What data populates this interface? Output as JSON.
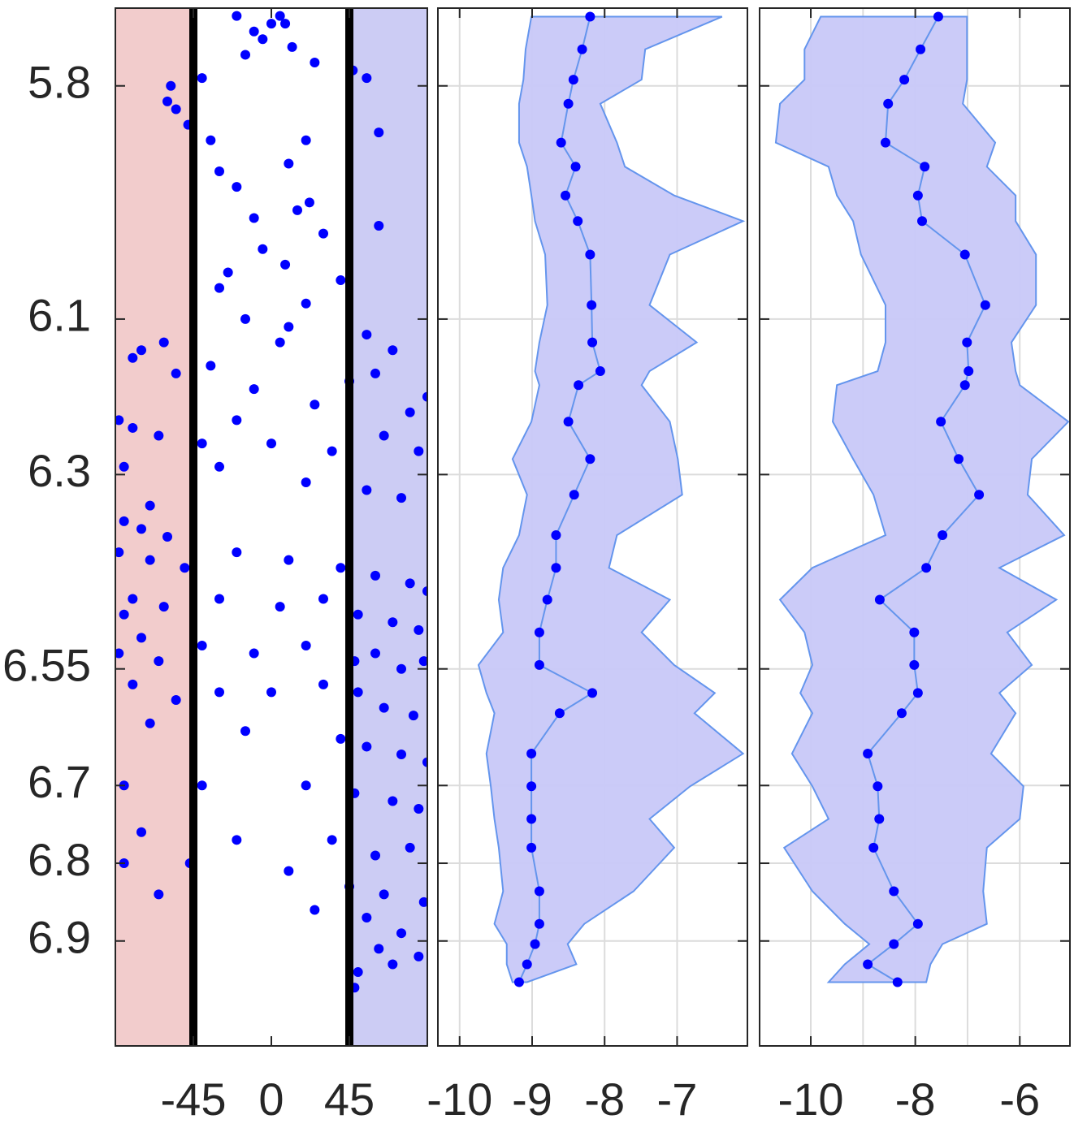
{
  "chart_data": [
    {
      "type": "scatter",
      "color": "#0000ff",
      "xlim": [
        -90,
        90
      ],
      "xticks": [
        -45,
        0,
        45
      ],
      "ylim": [
        5.7,
        7.035
      ],
      "y_reversed": true,
      "yticks": [
        5.8,
        6.1,
        6.3,
        6.55,
        6.7,
        6.8,
        6.9
      ],
      "ytick_labels": true,
      "grid": false,
      "shaded_spans": [
        {
          "from": -90,
          "to": -45,
          "color": "#f2cccc"
        },
        {
          "from": 45,
          "to": 90,
          "color": "#ccccf4"
        }
      ],
      "vlines": [
        -45,
        45
      ],
      "vline_color": "#000000",
      "x": [
        5,
        8,
        -20,
        -10,
        12,
        -15,
        25,
        -5,
        0,
        -58,
        -55,
        -48,
        -60,
        -40,
        -35,
        47,
        55,
        62,
        20,
        10,
        -30,
        -20,
        15,
        22,
        -10,
        30,
        62,
        -5,
        8,
        -25,
        40,
        -30,
        20,
        -15,
        5,
        10,
        -62,
        -75,
        -55,
        -80,
        -35,
        55,
        70,
        60,
        45,
        -10,
        25,
        -20,
        80,
        90,
        -88,
        -80,
        -65,
        -40,
        0,
        35,
        65,
        85,
        -85,
        -30,
        20,
        55,
        75,
        -70,
        -85,
        -75,
        -60,
        -88,
        -70,
        -50,
        -20,
        10,
        40,
        60,
        80,
        90,
        -80,
        -85,
        -62,
        -30,
        5,
        30,
        50,
        70,
        85,
        -75,
        -88,
        -65,
        -40,
        -10,
        20,
        48,
        60,
        75,
        88,
        -80,
        -55,
        -30,
        0,
        30,
        50,
        65,
        82,
        -70,
        -15,
        40,
        55,
        75,
        90,
        -85,
        -40,
        20,
        48,
        70,
        85,
        -75,
        -20,
        35,
        60,
        80,
        -85,
        -47,
        10,
        45,
        65,
        88,
        -65,
        25,
        55,
        75,
        62,
        85,
        50,
        70,
        48
      ],
      "y": [
        5.71,
        5.72,
        5.71,
        5.73,
        5.75,
        5.76,
        5.77,
        5.74,
        5.72,
        5.8,
        5.83,
        5.85,
        5.82,
        5.79,
        5.87,
        5.78,
        5.79,
        5.86,
        5.87,
        5.9,
        5.91,
        5.93,
        5.96,
        5.95,
        5.97,
        5.99,
        5.98,
        6.01,
        6.03,
        6.04,
        6.05,
        6.06,
        6.08,
        6.1,
        6.13,
        6.11,
        6.13,
        6.14,
        6.17,
        6.15,
        6.16,
        6.12,
        6.14,
        6.17,
        6.18,
        6.19,
        6.21,
        6.23,
        6.22,
        6.2,
        6.23,
        6.24,
        6.25,
        6.26,
        6.26,
        6.27,
        6.25,
        6.27,
        6.29,
        6.29,
        6.31,
        6.32,
        6.33,
        6.34,
        6.36,
        6.37,
        6.38,
        6.4,
        6.41,
        6.42,
        6.4,
        6.41,
        6.42,
        6.43,
        6.44,
        6.45,
        6.46,
        6.48,
        6.47,
        6.46,
        6.47,
        6.46,
        6.48,
        6.49,
        6.5,
        6.51,
        6.53,
        6.54,
        6.52,
        6.53,
        6.52,
        6.54,
        6.53,
        6.55,
        6.54,
        6.57,
        6.59,
        6.58,
        6.58,
        6.57,
        6.58,
        6.6,
        6.61,
        6.62,
        6.63,
        6.64,
        6.65,
        6.66,
        6.67,
        6.7,
        6.7,
        6.7,
        6.71,
        6.72,
        6.73,
        6.76,
        6.77,
        6.77,
        6.79,
        6.78,
        6.8,
        6.8,
        6.81,
        6.83,
        6.84,
        6.85,
        6.84,
        6.86,
        6.87,
        6.89,
        6.91,
        6.92,
        6.94,
        6.93,
        6.96
      ]
    },
    {
      "type": "profile",
      "color": "#0000ff",
      "band_color": "#c8c8f8",
      "edge_color": "#6495ed",
      "xlim": [
        -10.3,
        -6.03
      ],
      "xticks": [
        -10,
        -9,
        -8,
        -7
      ],
      "ylim": [
        5.7,
        7.035
      ],
      "y_reversed": true,
      "yticks": [
        5.8,
        6.1,
        6.3,
        6.55,
        6.7,
        6.8,
        6.9
      ],
      "ytick_labels": false,
      "grid": true,
      "y": [
        5.711,
        5.753,
        5.792,
        5.823,
        5.873,
        5.904,
        5.941,
        5.974,
        6.017,
        6.082,
        6.13,
        6.167,
        6.185,
        6.232,
        6.28,
        6.326,
        6.378,
        6.42,
        6.461,
        6.503,
        6.545,
        6.581,
        6.607,
        6.659,
        6.701,
        6.743,
        6.78,
        6.836,
        6.878,
        6.904,
        6.93,
        6.953
      ],
      "values": [
        -8.2,
        -8.31,
        -8.43,
        -8.5,
        -8.6,
        -8.4,
        -8.54,
        -8.37,
        -8.2,
        -8.18,
        -8.17,
        -8.06,
        -8.36,
        -8.5,
        -8.2,
        -8.42,
        -8.67,
        -8.67,
        -8.79,
        -8.9,
        -8.9,
        -8.17,
        -8.62,
        -9.01,
        -9.01,
        -9.01,
        -9.01,
        -8.9,
        -8.9,
        -8.96,
        -9.07,
        -9.18
      ],
      "band_low": [
        -9.01,
        -9.09,
        -9.12,
        -9.18,
        -9.18,
        -9.07,
        -9.01,
        -8.96,
        -8.82,
        -8.79,
        -8.9,
        -8.96,
        -8.9,
        -9.01,
        -9.27,
        -9.07,
        -9.18,
        -9.4,
        -9.46,
        -9.4,
        -9.74,
        -9.63,
        -9.52,
        -9.63,
        -9.57,
        -9.52,
        -9.46,
        -9.4,
        -9.52,
        -9.35,
        -9.35,
        -9.27
      ],
      "band_high": [
        -6.38,
        -7.44,
        -7.49,
        -8.06,
        -7.83,
        -7.72,
        -7.04,
        -6.09,
        -7.1,
        -7.38,
        -6.73,
        -7.38,
        -7.49,
        -7.1,
        -6.99,
        -6.93,
        -7.83,
        -7.94,
        -7.1,
        -7.49,
        -7.04,
        -6.48,
        -6.76,
        -6.09,
        -6.82,
        -7.38,
        -7.04,
        -7.6,
        -8.28,
        -8.51,
        -8.39,
        -9.07
      ]
    },
    {
      "type": "profile",
      "color": "#0000ff",
      "band_color": "#c8c8f8",
      "edge_color": "#6495ed",
      "xlim": [
        -10.98,
        -5.04
      ],
      "xticks": [
        -10,
        -8,
        -6
      ],
      "xgrid_extra": [
        -9,
        -7
      ],
      "ylim": [
        5.7,
        7.035
      ],
      "y_reversed": true,
      "yticks": [
        5.8,
        6.1,
        6.3,
        6.55,
        6.7,
        6.8,
        6.9
      ],
      "ytick_labels": false,
      "grid": true,
      "y": [
        5.711,
        5.753,
        5.792,
        5.823,
        5.873,
        5.904,
        5.941,
        5.974,
        6.017,
        6.082,
        6.13,
        6.167,
        6.185,
        6.232,
        6.28,
        6.326,
        6.378,
        6.42,
        6.461,
        6.503,
        6.545,
        6.581,
        6.607,
        6.659,
        6.701,
        6.743,
        6.78,
        6.836,
        6.878,
        6.904,
        6.93,
        6.953
      ],
      "values": [
        -7.56,
        -7.9,
        -8.21,
        -8.52,
        -8.57,
        -7.82,
        -7.95,
        -7.87,
        -7.05,
        -6.66,
        -7.01,
        -6.98,
        -7.05,
        -7.51,
        -7.17,
        -6.78,
        -7.48,
        -7.79,
        -8.68,
        -8.02,
        -8.02,
        -7.95,
        -8.26,
        -8.91,
        -8.72,
        -8.69,
        -8.8,
        -8.41,
        -7.95,
        -8.41,
        -8.91,
        -8.34
      ],
      "band_low": [
        -9.81,
        -10.12,
        -10.12,
        -10.59,
        -10.67,
        -9.66,
        -9.5,
        -9.19,
        -9.04,
        -8.57,
        -8.57,
        -8.72,
        -9.5,
        -9.58,
        -9.19,
        -8.8,
        -8.57,
        -9.97,
        -10.59,
        -10.12,
        -9.97,
        -10.2,
        -9.97,
        -10.36,
        -9.97,
        -9.66,
        -10.51,
        -9.97,
        -9.35,
        -8.88,
        -9.35,
        -9.66
      ],
      "band_high": [
        -7.01,
        -7.01,
        -7.01,
        -7.09,
        -6.47,
        -6.63,
        -6.08,
        -6.08,
        -5.69,
        -5.69,
        -6.16,
        -6.08,
        -6.0,
        -5.07,
        -5.77,
        -5.85,
        -5.15,
        -6.39,
        -5.3,
        -6.24,
        -5.77,
        -6.39,
        -6.08,
        -6.55,
        -5.93,
        -6.0,
        -6.63,
        -6.7,
        -6.63,
        -7.48,
        -7.71,
        -7.79
      ]
    }
  ]
}
